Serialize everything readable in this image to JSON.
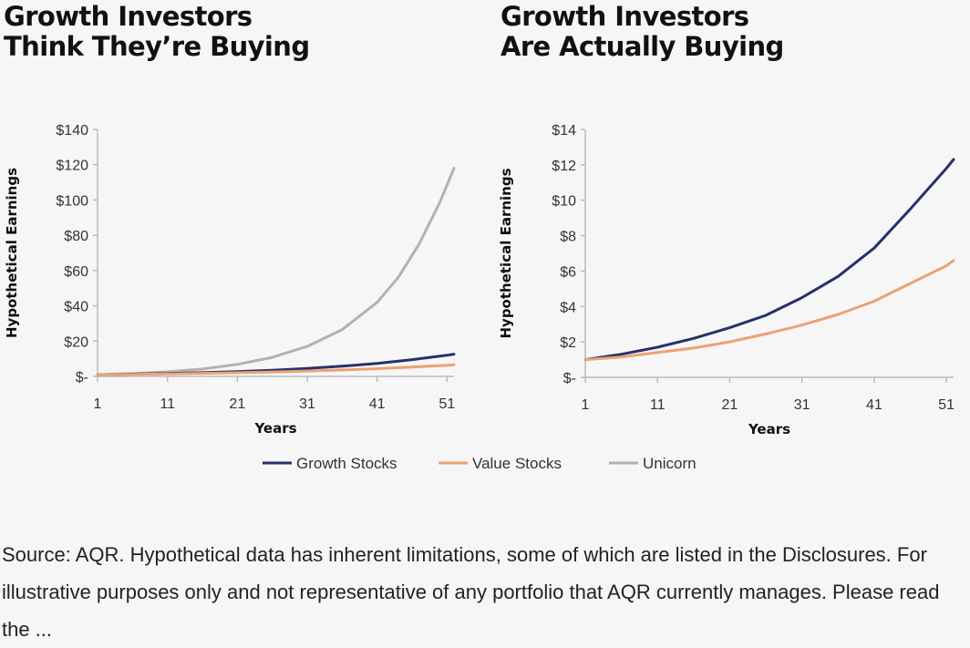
{
  "panels": [
    {
      "title_line1": "Growth Investors",
      "title_line2": "Think They’re Buying"
    },
    {
      "title_line1": "Growth Investors",
      "title_line2": "Are Actually Buying"
    }
  ],
  "legend": [
    {
      "label": "Growth Stocks",
      "color": "#27306b"
    },
    {
      "label": "Value Stocks",
      "color": "#eba273"
    },
    {
      "label": "Unicorn",
      "color": "#b2b2b2"
    }
  ],
  "source_note": "Source: AQR. Hypothetical data has inherent limitations, some of which are listed in the Disclosures. For illustrative purposes only and not representative of any portfolio that AQR currently manages. Please read the ...",
  "chart_data": [
    {
      "type": "line",
      "title": "Growth Investors Think They’re Buying",
      "xlabel": "Years",
      "ylabel": "Hypothetical Earnings",
      "xlim": [
        1,
        52
      ],
      "ylim": [
        0,
        140
      ],
      "x_ticks": [
        1,
        11,
        21,
        31,
        41,
        51
      ],
      "y_ticks": [
        0,
        20,
        40,
        60,
        80,
        100,
        120,
        140
      ],
      "y_tick_labels": [
        "$-",
        "$20",
        "$40",
        "$60",
        "$80",
        "$100",
        "$120",
        "$140"
      ],
      "grid": false,
      "legend_position": "bottom",
      "series": [
        {
          "name": "Growth Stocks",
          "color": "#27306b",
          "x": [
            1,
            6,
            11,
            16,
            21,
            26,
            31,
            36,
            41,
            46,
            51,
            52
          ],
          "y": [
            1.0,
            1.28,
            1.65,
            2.12,
            2.72,
            3.5,
            4.5,
            5.8,
            7.4,
            9.5,
            12.0,
            12.6
          ]
        },
        {
          "name": "Value Stocks",
          "color": "#eba273",
          "x": [
            1,
            6,
            11,
            16,
            21,
            26,
            31,
            36,
            41,
            46,
            51,
            52
          ],
          "y": [
            1.0,
            1.2,
            1.45,
            1.75,
            2.1,
            2.55,
            3.05,
            3.65,
            4.4,
            5.3,
            6.3,
            6.6
          ]
        },
        {
          "name": "Unicorn",
          "color": "#b2b2b2",
          "x": [
            1,
            6,
            11,
            16,
            21,
            26,
            31,
            36,
            41,
            44,
            47,
            50,
            52
          ],
          "y": [
            1.0,
            1.6,
            2.6,
            4.2,
            6.8,
            10.8,
            17.0,
            26.5,
            42.0,
            56.0,
            75.0,
            99.0,
            118.0
          ]
        }
      ]
    },
    {
      "type": "line",
      "title": "Growth Investors Are Actually Buying",
      "xlabel": "Years",
      "ylabel": "Hypothetical Earnings",
      "xlim": [
        1,
        52
      ],
      "ylim": [
        0,
        14
      ],
      "x_ticks": [
        1,
        11,
        21,
        31,
        41,
        51
      ],
      "y_ticks": [
        0,
        2,
        4,
        6,
        8,
        10,
        12,
        14
      ],
      "y_tick_labels": [
        "$-",
        "$2",
        "$4",
        "$6",
        "$8",
        "$10",
        "$12",
        "$14"
      ],
      "grid": false,
      "legend_position": "bottom",
      "series": [
        {
          "name": "Growth Stocks",
          "color": "#27306b",
          "x": [
            1,
            6,
            11,
            16,
            21,
            26,
            31,
            36,
            41,
            46,
            51,
            52
          ],
          "y": [
            1.0,
            1.3,
            1.7,
            2.2,
            2.8,
            3.5,
            4.5,
            5.7,
            7.3,
            9.5,
            11.8,
            12.3
          ]
        },
        {
          "name": "Value Stocks",
          "color": "#eba273",
          "x": [
            1,
            6,
            11,
            16,
            21,
            26,
            31,
            36,
            41,
            46,
            51,
            52
          ],
          "y": [
            1.0,
            1.15,
            1.4,
            1.65,
            2.0,
            2.45,
            2.95,
            3.55,
            4.3,
            5.3,
            6.3,
            6.6
          ]
        }
      ]
    }
  ]
}
